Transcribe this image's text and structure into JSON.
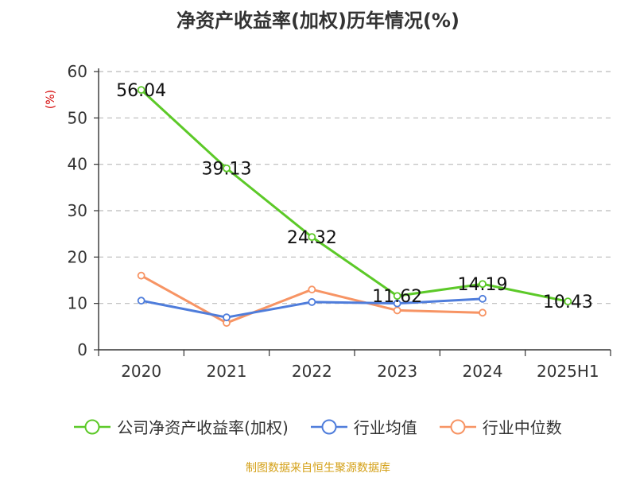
{
  "title": "净资产收益率(加权)历年情况(%)",
  "source": "制图数据来自恒生聚源数据库",
  "chart_data": {
    "type": "line",
    "title": "净资产收益率(加权)历年情况(%)",
    "ylabel": "(%)",
    "xlabel": "",
    "categories": [
      "2020",
      "2021",
      "2022",
      "2023",
      "2024",
      "2025H1"
    ],
    "ylim": [
      0,
      60
    ],
    "yticks": [
      0,
      10,
      20,
      30,
      40,
      50,
      60
    ],
    "grid": true,
    "legend_position": "bottom",
    "series": [
      {
        "name": "公司净资产收益率(加权)",
        "color": "#5cc928",
        "values": [
          56.04,
          39.13,
          24.32,
          11.62,
          14.19,
          10.43
        ],
        "labels": [
          "56.04",
          "39.13",
          "24.32",
          "11.62",
          "14.19",
          "10.43"
        ]
      },
      {
        "name": "行业均值",
        "color": "#4f7ddb",
        "values": [
          10.6,
          7.0,
          10.3,
          10.0,
          11.0,
          null
        ]
      },
      {
        "name": "行业中位数",
        "color": "#f79464",
        "values": [
          16.0,
          5.8,
          13.0,
          8.5,
          8.0,
          null
        ]
      }
    ]
  }
}
